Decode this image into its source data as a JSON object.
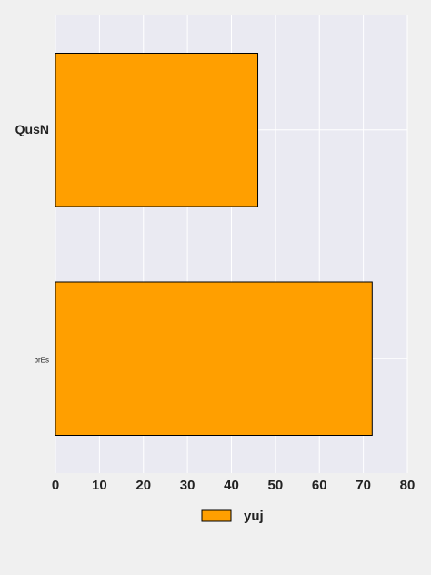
{
  "chart_data": {
    "type": "bar",
    "orientation": "horizontal",
    "categories": [
      "QusN",
      "brEs"
    ],
    "series": [
      {
        "name": "yuj",
        "values": [
          46,
          72
        ],
        "color": "#ff9f00"
      }
    ],
    "xlim": [
      0,
      80
    ],
    "xticks": [
      0,
      10,
      20,
      30,
      40,
      50,
      60,
      70,
      80
    ],
    "grid": true,
    "legend": "bottom-center",
    "colors": {
      "plot_background": "#eaeaf2",
      "page_background": "#f0f0f0",
      "grid": "#ffffff",
      "bar_edge": "#000000"
    }
  }
}
